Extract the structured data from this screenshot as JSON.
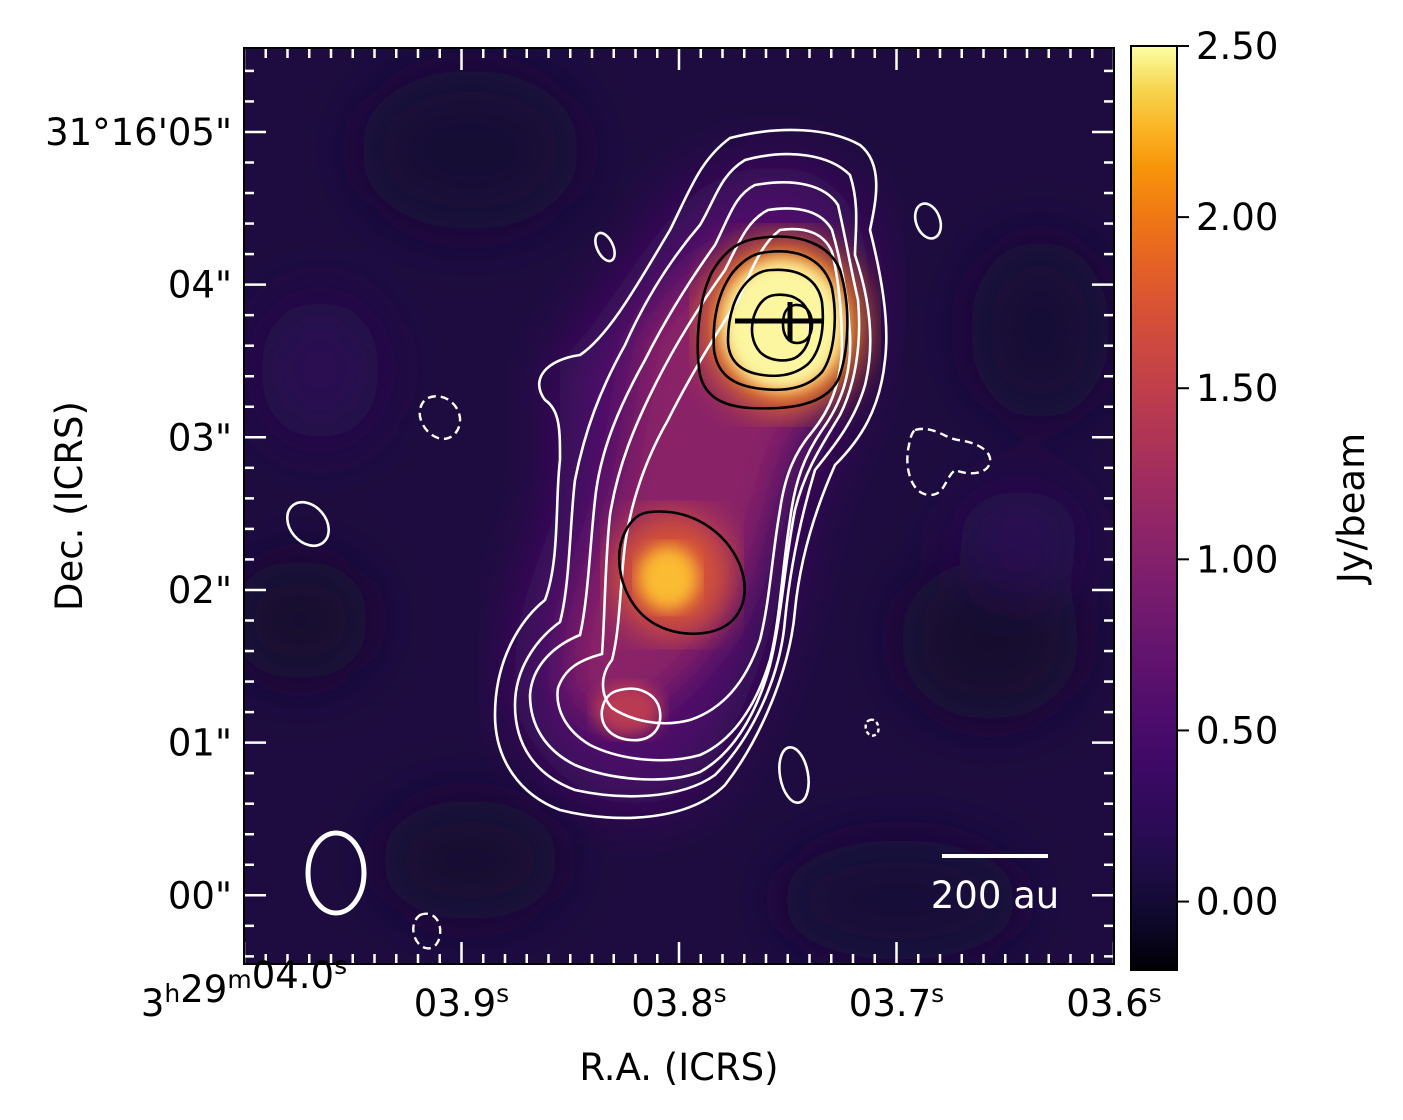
{
  "chart_data": {
    "type": "heatmap",
    "title": "",
    "xlabel": "R.A. (ICRS)",
    "ylabel": "Dec. (ICRS)",
    "colorbar": {
      "label": "Jy/beam",
      "colormap": "inferno",
      "range": [
        -0.2,
        2.5
      ],
      "ticks": [
        {
          "value": 0.0,
          "label": "0.00"
        },
        {
          "value": 0.5,
          "label": "0.50"
        },
        {
          "value": 1.0,
          "label": "1.00"
        },
        {
          "value": 1.5,
          "label": "1.50"
        },
        {
          "value": 2.0,
          "label": "2.00"
        },
        {
          "value": 2.5,
          "label": "2.50"
        }
      ]
    },
    "x_ticks": [
      {
        "ra_s": 4.0,
        "base": "3",
        "h": "h",
        "mid": "29",
        "m": "m",
        "sec": "04.0",
        "s": "s"
      },
      {
        "ra_s": 3.9,
        "base": "",
        "h": "",
        "mid": "",
        "m": "",
        "sec": "03.9",
        "s": "s"
      },
      {
        "ra_s": 3.8,
        "base": "",
        "h": "",
        "mid": "",
        "m": "",
        "sec": "03.8",
        "s": "s"
      },
      {
        "ra_s": 3.7,
        "base": "",
        "h": "",
        "mid": "",
        "m": "",
        "sec": "03.7",
        "s": "s"
      },
      {
        "ra_s": 3.6,
        "base": "",
        "h": "",
        "mid": "",
        "m": "",
        "sec": "03.6",
        "s": "s"
      }
    ],
    "y_ticks": [
      {
        "offset_arcsec": 5,
        "label": "31°16'05\""
      },
      {
        "offset_arcsec": 4,
        "label": "04\""
      },
      {
        "offset_arcsec": 3,
        "label": "03\""
      },
      {
        "offset_arcsec": 2,
        "label": "02\""
      },
      {
        "offset_arcsec": 1,
        "label": "01\""
      },
      {
        "offset_arcsec": 0,
        "label": "00\""
      }
    ],
    "x_range_ra_s": [
      4.0,
      3.6
    ],
    "y_range_arcsec": [
      -0.45,
      5.55
    ],
    "sources": [
      {
        "name": "peak_north",
        "ra_s": 3.75,
        "dec_offset_arcsec": 3.72,
        "peak_jy_per_beam": 2.6
      },
      {
        "name": "peak_middle",
        "ra_s": 3.81,
        "dec_offset_arcsec": 2.08,
        "peak_jy_per_beam": 2.05
      },
      {
        "name": "peak_south",
        "ra_s": 3.825,
        "dec_offset_arcsec": 1.2,
        "peak_jy_per_beam": 1.0
      }
    ],
    "marker": {
      "type": "cross",
      "ra_s": 3.754,
      "dec_offset_arcsec": 3.77
    },
    "scale_bar": {
      "label": "200 au"
    },
    "beam": {
      "major_arcsec": 0.53,
      "minor_arcsec": 0.38,
      "position_angle_deg": 0
    }
  },
  "colors": {
    "positive_contour": "#ffffff",
    "high_contour": "#000000",
    "negative_contour": "#ffffff"
  }
}
